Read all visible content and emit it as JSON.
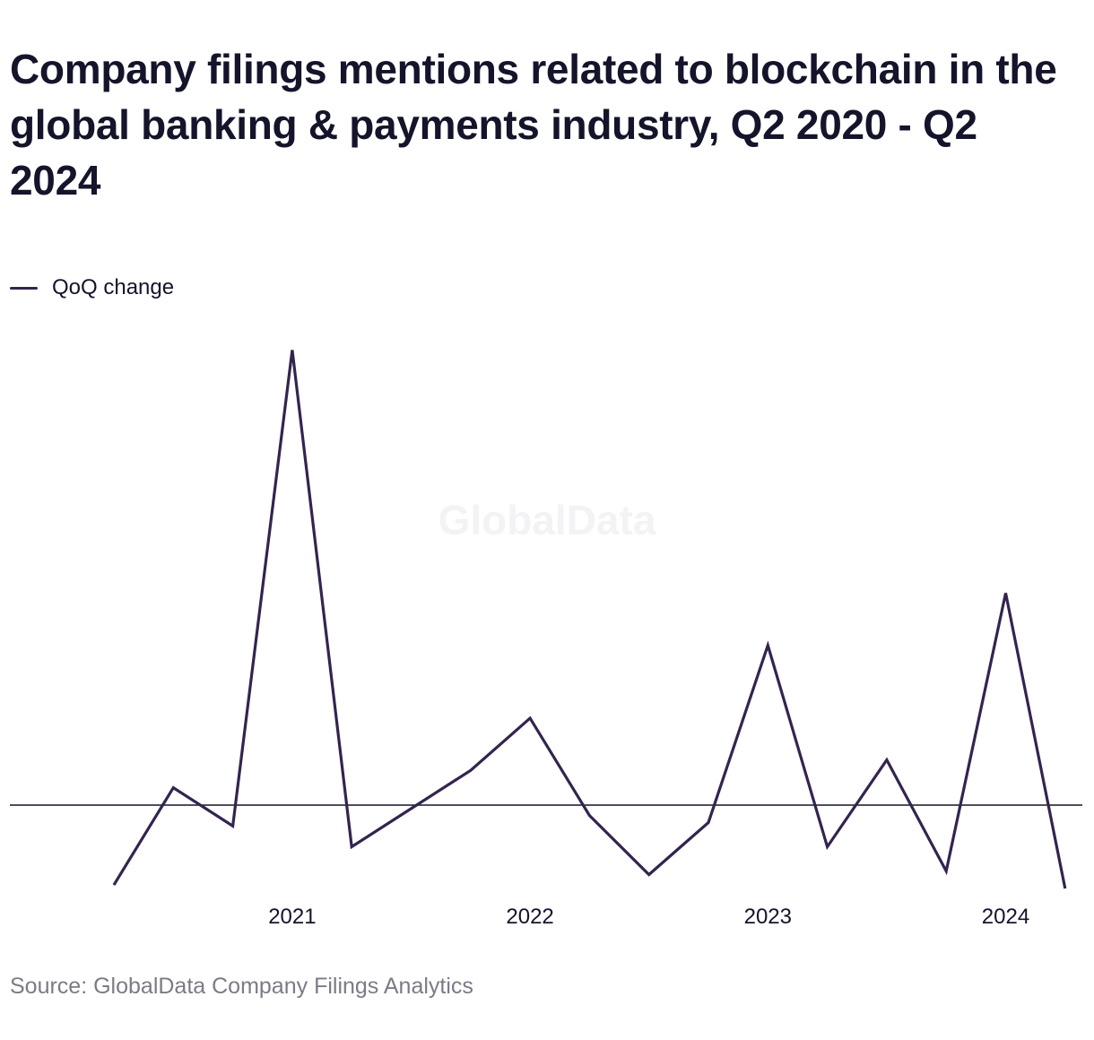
{
  "chart_data": {
    "type": "line",
    "title": "Company filings mentions related to blockchain in the global banking & payments industry, Q2 2020 - Q2 2024",
    "x": [
      "Q2 2020",
      "Q3 2020",
      "Q4 2020",
      "Q1 2021",
      "Q2 2021",
      "Q3 2021",
      "Q4 2021",
      "Q1 2022",
      "Q2 2022",
      "Q3 2022",
      "Q4 2022",
      "Q1 2023",
      "Q2 2023",
      "Q3 2023",
      "Q4 2023",
      "Q1 2024",
      "Q2 2024"
    ],
    "series": [
      {
        "name": "QoQ change",
        "color": "#33244f",
        "values": [
          -23,
          5,
          -6,
          131,
          -12,
          -1,
          10,
          25,
          -3,
          -20,
          -5,
          46,
          -12,
          13,
          -19,
          61,
          -24
        ]
      }
    ],
    "xticks": [
      {
        "label": "2021",
        "at": "Q1 2021"
      },
      {
        "label": "2022",
        "at": "Q1 2022"
      },
      {
        "label": "2023",
        "at": "Q1 2023"
      },
      {
        "label": "2024",
        "at": "Q1 2024"
      }
    ],
    "ylim": [
      -30,
      140
    ],
    "baseline": 0,
    "xlabel": "",
    "ylabel": "",
    "grid": false,
    "legend": "top-left"
  },
  "watermark": "GlobalData",
  "source": "Source: GlobalData Company Filings Analytics"
}
